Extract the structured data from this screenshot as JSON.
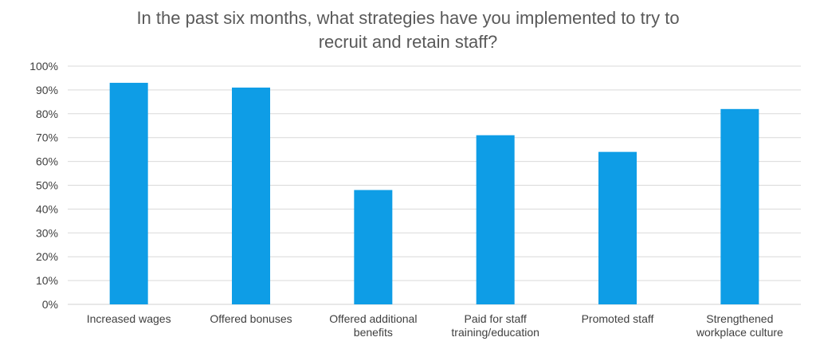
{
  "chart_data": {
    "type": "bar",
    "title_lines": [
      "In the past six months, what strategies have you implemented to try to",
      "recruit and retain staff?"
    ],
    "categories": [
      [
        "Increased wages"
      ],
      [
        "Offered bonuses"
      ],
      [
        "Offered additional",
        "benefits"
      ],
      [
        "Paid for staff",
        "training/education"
      ],
      [
        "Promoted staff"
      ],
      [
        "Strengthened",
        "workplace culture"
      ]
    ],
    "values": [
      93,
      91,
      48,
      71,
      64,
      82
    ],
    "ylim": [
      0,
      100
    ],
    "yticks": [
      0,
      10,
      20,
      30,
      40,
      50,
      60,
      70,
      80,
      90,
      100
    ],
    "ytick_labels": [
      "0%",
      "10%",
      "20%",
      "30%",
      "40%",
      "50%",
      "60%",
      "70%",
      "80%",
      "90%",
      "100%"
    ],
    "grid": true,
    "bar_color": "#0e9de6",
    "grid_color": "#d9d9d9",
    "axis_color": "#d0d0d0"
  }
}
